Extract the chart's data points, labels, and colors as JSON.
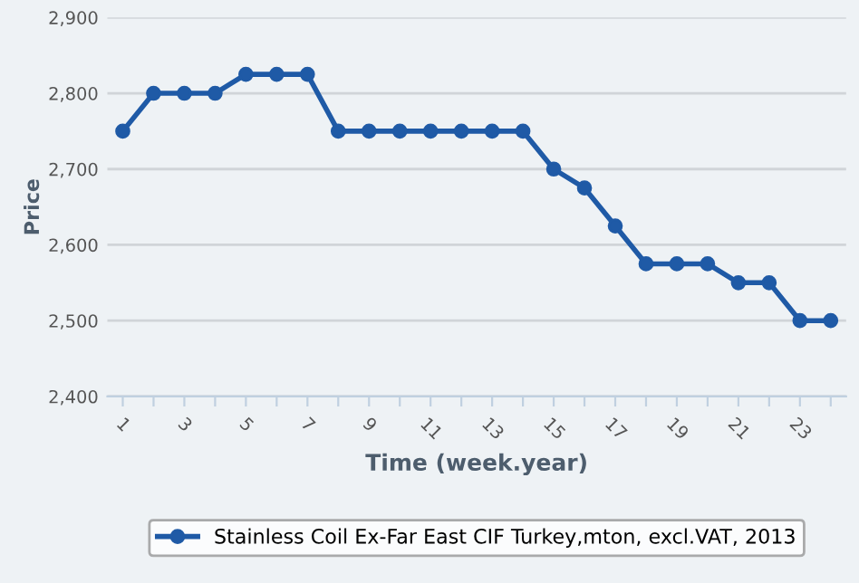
{
  "chart_data": {
    "type": "line",
    "xlabel": "Time (week.year)",
    "ylabel": "Price",
    "x": [
      1,
      2,
      3,
      4,
      5,
      6,
      7,
      8,
      9,
      10,
      11,
      12,
      13,
      14,
      15,
      16,
      17,
      18,
      19,
      20,
      21,
      22,
      23,
      24
    ],
    "series": [
      {
        "name": "Stainless Coil Ex-Far East CIF Turkey,mton, excl.VAT, 2013",
        "color": "#1f5aa6",
        "values": [
          2750,
          2800,
          2800,
          2800,
          2825,
          2825,
          2825,
          2750,
          2750,
          2750,
          2750,
          2750,
          2750,
          2750,
          2700,
          2675,
          2625,
          2575,
          2575,
          2575,
          2550,
          2550,
          2500,
          2500
        ]
      }
    ],
    "xlim": [
      0.5,
      24.5
    ],
    "xticks": [
      1,
      {
        "value": 2,
        "label": null
      },
      3,
      {
        "value": 4,
        "label": null
      },
      5,
      {
        "value": 6,
        "label": null
      },
      7,
      {
        "value": 8,
        "label": null
      },
      9,
      {
        "value": 10,
        "label": null
      },
      11,
      {
        "value": 12,
        "label": null
      },
      13,
      {
        "value": 14,
        "label": null
      },
      15,
      {
        "value": 16,
        "label": null
      },
      17,
      {
        "value": 18,
        "label": null
      },
      19,
      {
        "value": 20,
        "label": null
      },
      21,
      {
        "value": 22,
        "label": null
      },
      23,
      {
        "value": 24,
        "label": null
      }
    ],
    "ylim": [
      2400,
      2900
    ],
    "yticks": [
      {
        "value": 2400,
        "label": "2,400"
      },
      {
        "value": 2500,
        "label": "2,500"
      },
      {
        "value": 2600,
        "label": "2,600"
      },
      {
        "value": 2700,
        "label": "2,700"
      },
      {
        "value": 2800,
        "label": "2,800"
      },
      {
        "value": 2900,
        "label": "2,900"
      }
    ],
    "grid": "y",
    "legend": "bottom",
    "marker": "circle",
    "line_style": "solid"
  }
}
